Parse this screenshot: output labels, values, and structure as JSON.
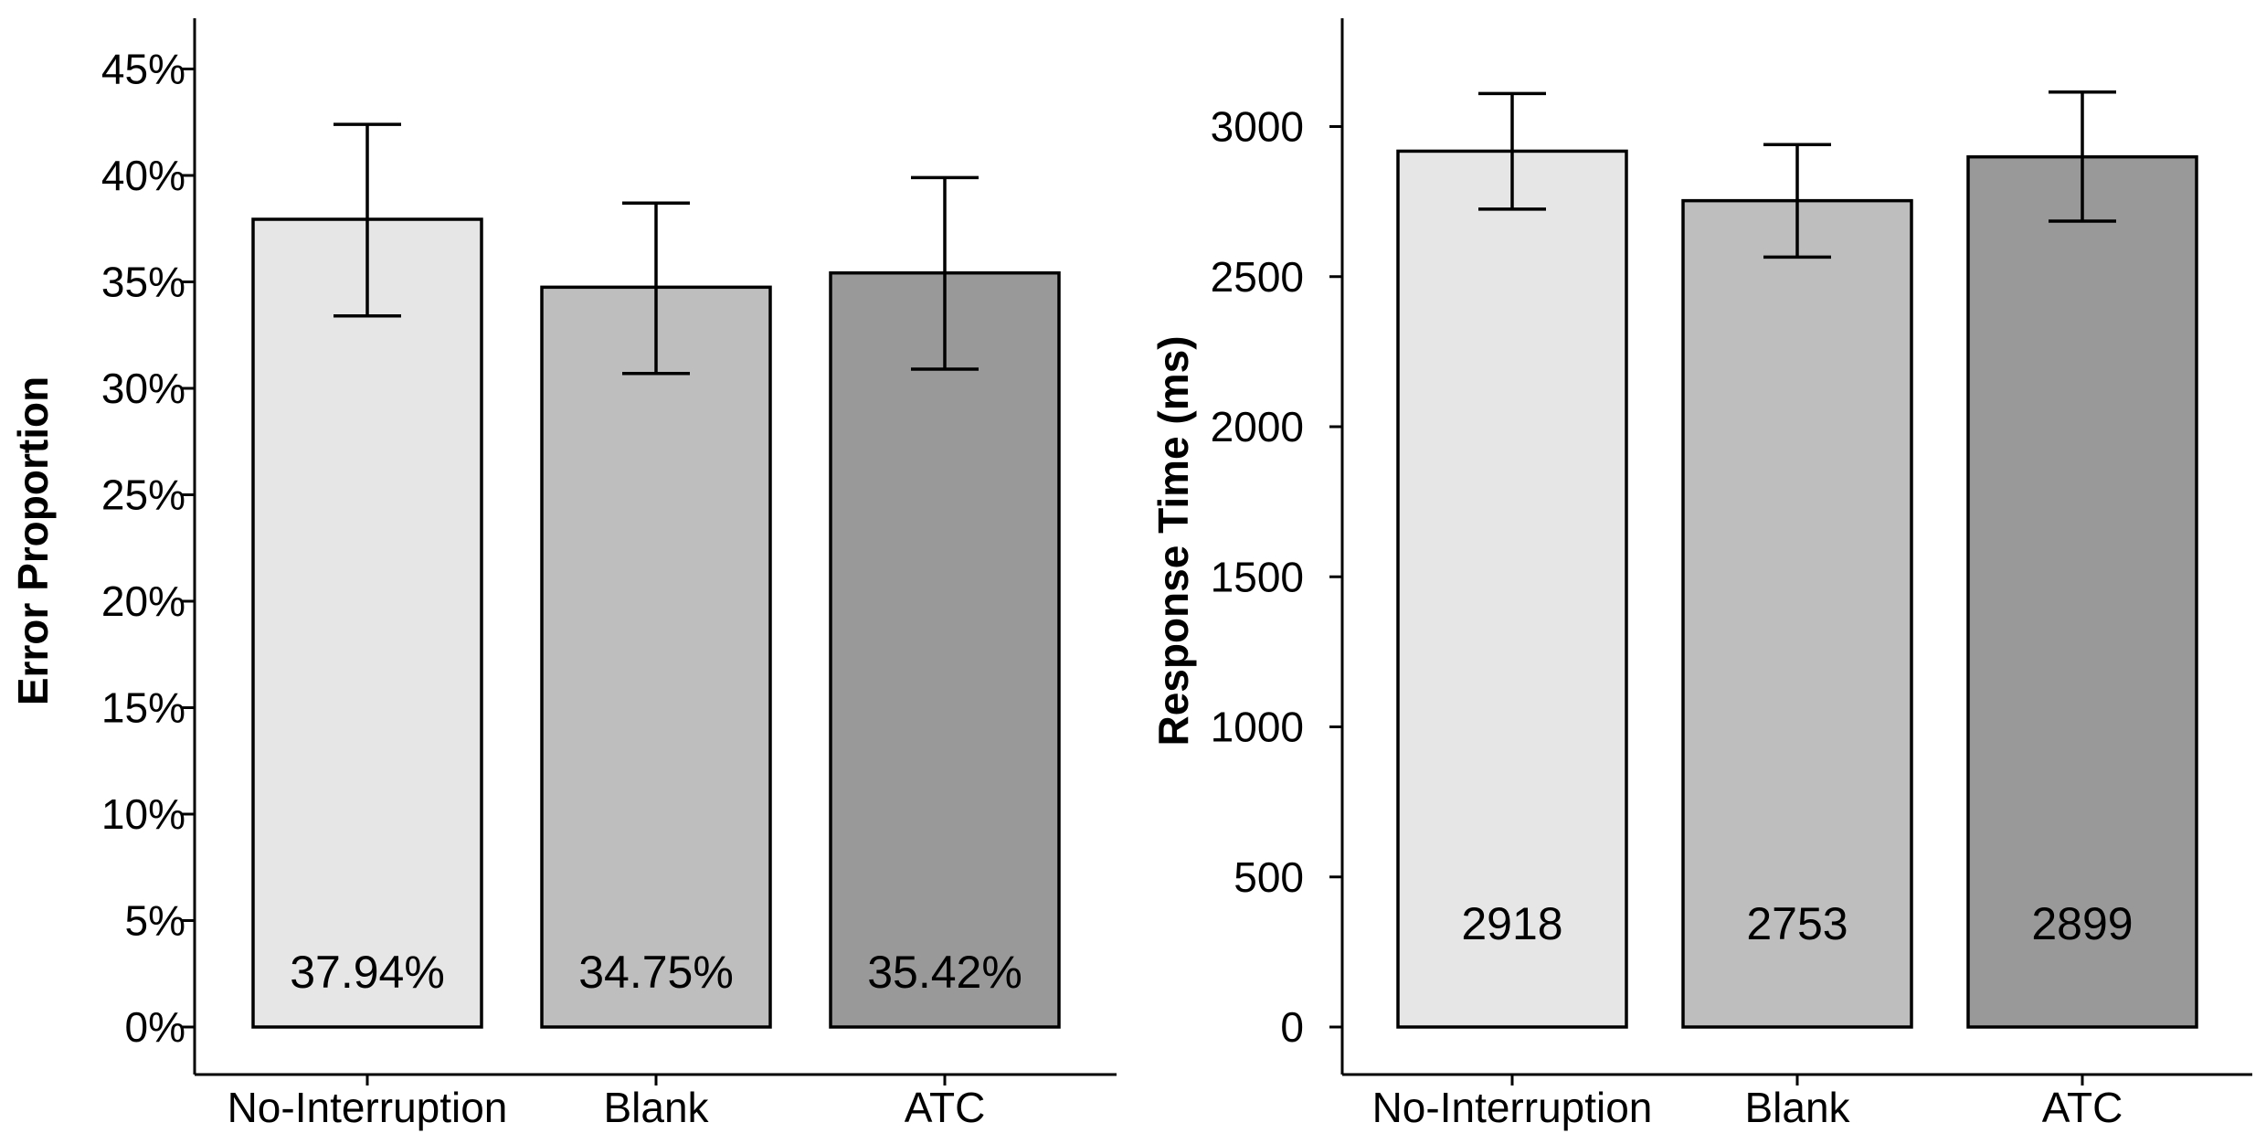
{
  "chart_data": [
    {
      "type": "bar",
      "ylabel": "Error Proportion",
      "categories": [
        "No-Interruption",
        "Blank",
        "ATC"
      ],
      "values": [
        37.94,
        34.75,
        35.42
      ],
      "value_labels": [
        "37.94%",
        "34.75%",
        "35.42%"
      ],
      "error_low": [
        33.4,
        30.7,
        30.9
      ],
      "error_high": [
        42.4,
        38.7,
        39.9
      ],
      "ylim": [
        0,
        47
      ],
      "yticks": [
        0,
        5,
        10,
        15,
        20,
        25,
        30,
        35,
        40,
        45
      ],
      "ytick_labels": [
        "0%",
        "5%",
        "10%",
        "15%",
        "20%",
        "25%",
        "30%",
        "35%",
        "40%",
        "45%"
      ],
      "colors": [
        "#e6e6e6",
        "#bebebe",
        "#999999"
      ],
      "grid": false
    },
    {
      "type": "bar",
      "ylabel": "Response Time (ms)",
      "categories": [
        "No-Interruption",
        "Blank",
        "ATC"
      ],
      "values": [
        2918,
        2753,
        2899
      ],
      "value_labels": [
        "2918",
        "2753",
        "2899"
      ],
      "error_low": [
        2725,
        2565,
        2685
      ],
      "error_high": [
        3110,
        2940,
        3115
      ],
      "ylim": [
        0,
        3200
      ],
      "yticks": [
        0,
        500,
        1000,
        1500,
        2000,
        2500,
        3000
      ],
      "ytick_labels": [
        "0",
        "500",
        "1000",
        "1500",
        "2000",
        "2500",
        "3000"
      ],
      "colors": [
        "#e6e6e6",
        "#bebebe",
        "#999999"
      ],
      "grid": false
    }
  ]
}
